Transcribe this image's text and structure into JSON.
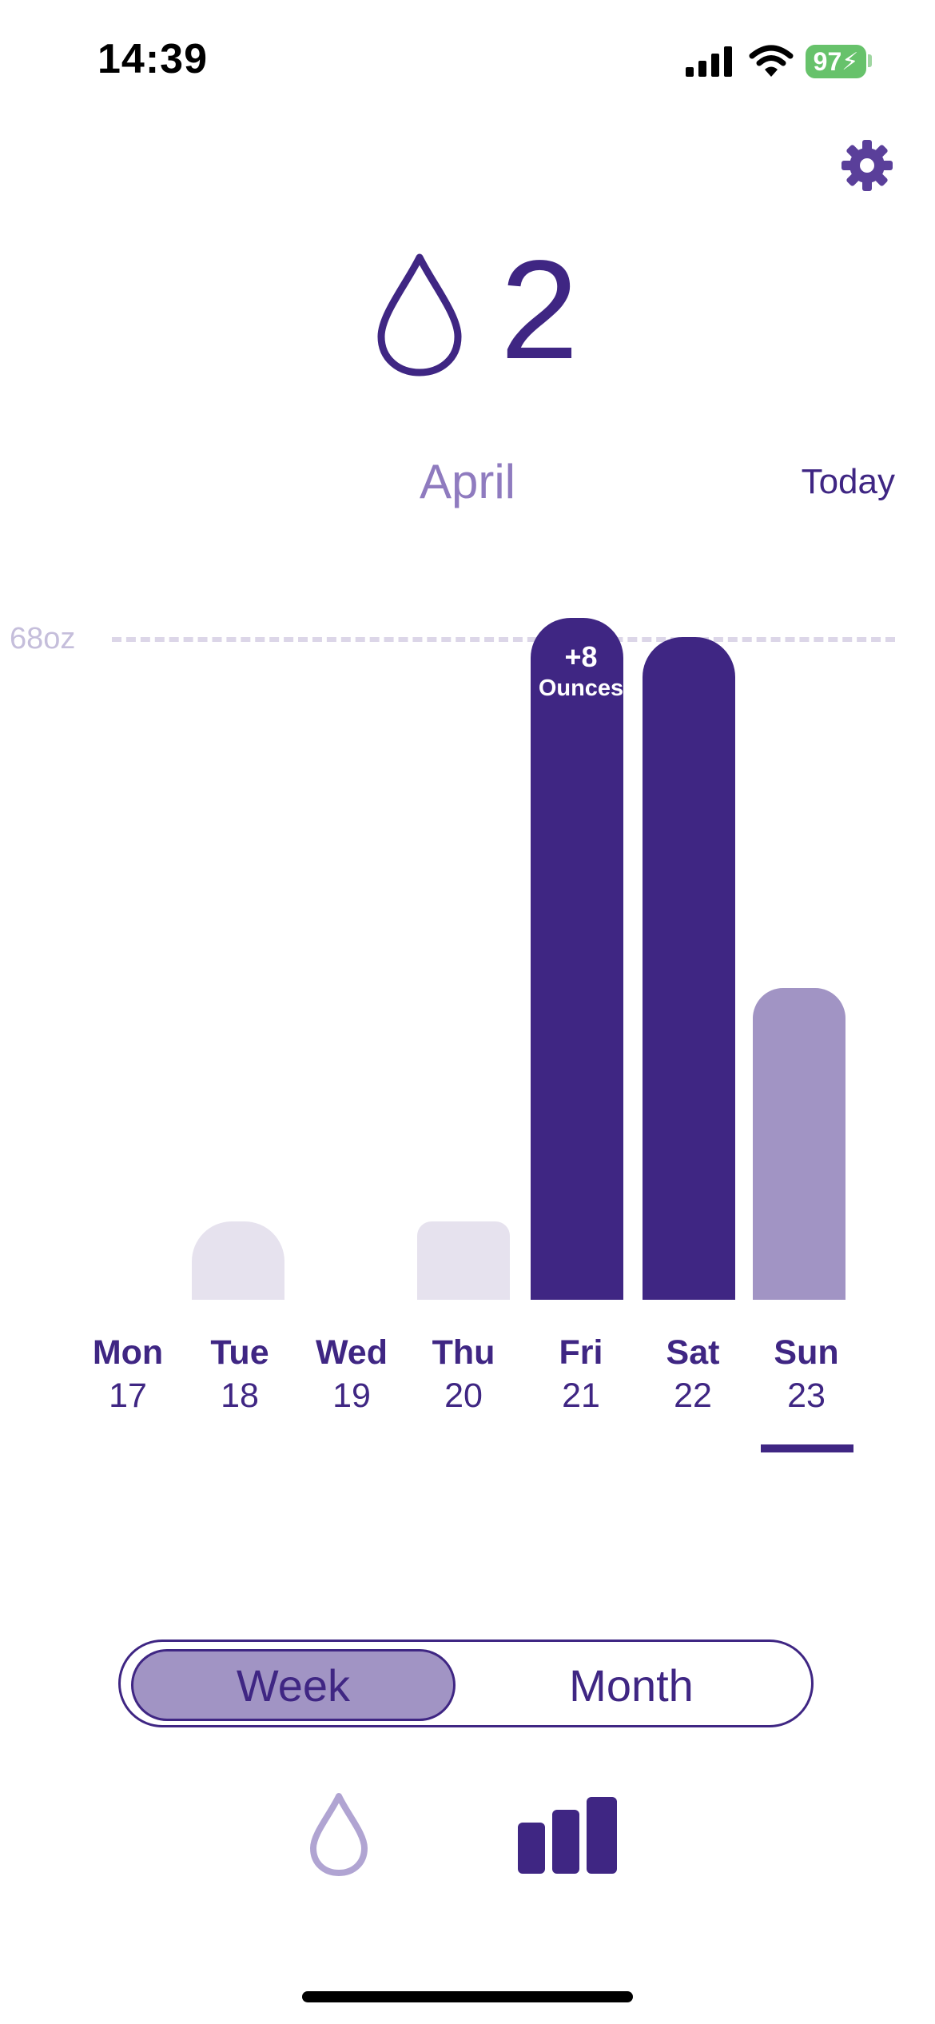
{
  "status_bar": {
    "time": "14:39",
    "battery": "97"
  },
  "header": {
    "drink_count": "2",
    "month": "April",
    "today_label": "Today"
  },
  "chart": {
    "goal_label": "68oz",
    "selected_bar_amount": "+8",
    "selected_bar_unit": "Ounces"
  },
  "chart_data": {
    "type": "bar",
    "categories": [
      "Mon 17",
      "Tue 18",
      "Wed 19",
      "Thu 20",
      "Fri 21",
      "Sat 22",
      "Sun 23"
    ],
    "values": [
      0,
      8,
      0,
      8,
      70,
      68,
      32
    ],
    "goal": 68,
    "colors": {
      "goal_met": "#3f2683",
      "today": "#a194c4",
      "partial": "#e6e2ee",
      "goal_line": "#dcd6e8"
    }
  },
  "days": [
    {
      "name": "Mon",
      "date": "17"
    },
    {
      "name": "Tue",
      "date": "18"
    },
    {
      "name": "Wed",
      "date": "19"
    },
    {
      "name": "Thu",
      "date": "20"
    },
    {
      "name": "Fri",
      "date": "21"
    },
    {
      "name": "Sat",
      "date": "22"
    },
    {
      "name": "Sun",
      "date": "23"
    }
  ],
  "segmented_control": {
    "options": [
      "Week",
      "Month"
    ],
    "selected": "Week"
  },
  "tab_bar": {
    "items": [
      "drop-icon",
      "bar-chart-icon"
    ]
  },
  "colors": {
    "primary": "#3f2683",
    "secondary": "#8f7bbf",
    "selected_segment": "#a194c4"
  }
}
